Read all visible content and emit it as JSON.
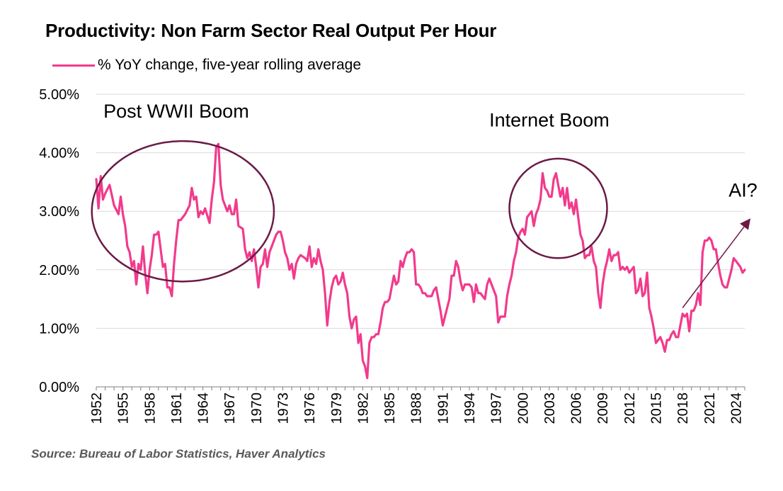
{
  "chart_data": {
    "type": "line",
    "title": "Productivity: Non Farm Sector Real Output Per Hour",
    "source": "Source: Bureau of Labor Statistics, Haver Analytics",
    "series": [
      {
        "name": "% YoY change, five-year rolling average",
        "color": "#F23A8C",
        "points": [
          [
            1952.0,
            3.55
          ],
          [
            1952.25,
            3.05
          ],
          [
            1952.5,
            3.6
          ],
          [
            1952.75,
            3.2
          ],
          [
            1953.0,
            3.3
          ],
          [
            1953.5,
            3.45
          ],
          [
            1954.0,
            3.1
          ],
          [
            1954.5,
            2.95
          ],
          [
            1954.75,
            3.25
          ],
          [
            1955.0,
            2.95
          ],
          [
            1955.25,
            2.75
          ],
          [
            1955.5,
            2.4
          ],
          [
            1955.75,
            2.3
          ],
          [
            1956.0,
            2.05
          ],
          [
            1956.25,
            2.15
          ],
          [
            1956.5,
            1.75
          ],
          [
            1956.75,
            2.1
          ],
          [
            1957.0,
            2.0
          ],
          [
            1957.25,
            2.4
          ],
          [
            1957.5,
            1.95
          ],
          [
            1957.75,
            1.6
          ],
          [
            1958.0,
            2.0
          ],
          [
            1958.25,
            2.25
          ],
          [
            1958.5,
            2.6
          ],
          [
            1958.75,
            2.6
          ],
          [
            1959.0,
            2.65
          ],
          [
            1959.5,
            2.05
          ],
          [
            1959.75,
            2.1
          ],
          [
            1960.0,
            1.7
          ],
          [
            1960.25,
            1.7
          ],
          [
            1960.5,
            1.55
          ],
          [
            1960.75,
            2.1
          ],
          [
            1961.0,
            2.5
          ],
          [
            1961.25,
            2.85
          ],
          [
            1961.5,
            2.85
          ],
          [
            1961.75,
            2.9
          ],
          [
            1962.0,
            2.95
          ],
          [
            1962.5,
            3.1
          ],
          [
            1962.75,
            3.4
          ],
          [
            1963.0,
            3.2
          ],
          [
            1963.25,
            3.25
          ],
          [
            1963.5,
            2.9
          ],
          [
            1963.75,
            3.0
          ],
          [
            1964.0,
            2.95
          ],
          [
            1964.25,
            3.05
          ],
          [
            1964.75,
            2.8
          ],
          [
            1965.0,
            3.2
          ],
          [
            1965.25,
            3.5
          ],
          [
            1965.5,
            4.1
          ],
          [
            1965.75,
            4.15
          ],
          [
            1966.0,
            3.45
          ],
          [
            1966.25,
            3.2
          ],
          [
            1966.5,
            3.1
          ],
          [
            1966.75,
            3.0
          ],
          [
            1967.0,
            3.1
          ],
          [
            1967.25,
            2.95
          ],
          [
            1967.5,
            2.95
          ],
          [
            1967.75,
            3.2
          ],
          [
            1968.0,
            2.75
          ],
          [
            1968.5,
            2.7
          ],
          [
            1968.75,
            2.35
          ],
          [
            1969.0,
            2.2
          ],
          [
            1969.25,
            2.3
          ],
          [
            1969.5,
            2.15
          ],
          [
            1969.75,
            2.35
          ],
          [
            1970.0,
            2.05
          ],
          [
            1970.25,
            1.7
          ],
          [
            1970.5,
            2.05
          ],
          [
            1970.75,
            2.1
          ],
          [
            1971.0,
            2.35
          ],
          [
            1971.25,
            2.05
          ],
          [
            1971.5,
            2.3
          ],
          [
            1972.0,
            2.5
          ],
          [
            1972.25,
            2.6
          ],
          [
            1972.5,
            2.65
          ],
          [
            1972.75,
            2.65
          ],
          [
            1973.0,
            2.5
          ],
          [
            1973.25,
            2.3
          ],
          [
            1973.5,
            2.2
          ],
          [
            1973.75,
            2.0
          ],
          [
            1974.0,
            2.1
          ],
          [
            1974.25,
            1.85
          ],
          [
            1974.5,
            2.1
          ],
          [
            1974.75,
            2.2
          ],
          [
            1975.0,
            2.25
          ],
          [
            1975.5,
            2.2
          ],
          [
            1975.75,
            2.15
          ],
          [
            1976.0,
            2.4
          ],
          [
            1976.25,
            2.05
          ],
          [
            1976.5,
            2.2
          ],
          [
            1976.75,
            2.1
          ],
          [
            1977.0,
            2.35
          ],
          [
            1977.25,
            2.15
          ],
          [
            1977.5,
            2.0
          ],
          [
            1977.75,
            1.6
          ],
          [
            1978.0,
            1.05
          ],
          [
            1978.25,
            1.45
          ],
          [
            1978.5,
            1.7
          ],
          [
            1978.75,
            1.85
          ],
          [
            1979.0,
            1.9
          ],
          [
            1979.25,
            1.75
          ],
          [
            1979.5,
            1.8
          ],
          [
            1979.75,
            1.95
          ],
          [
            1980.0,
            1.75
          ],
          [
            1980.25,
            1.6
          ],
          [
            1980.5,
            1.2
          ],
          [
            1980.75,
            1.0
          ],
          [
            1981.0,
            1.15
          ],
          [
            1981.25,
            1.2
          ],
          [
            1981.5,
            0.75
          ],
          [
            1981.75,
            0.9
          ],
          [
            1982.0,
            0.45
          ],
          [
            1982.25,
            0.35
          ],
          [
            1982.5,
            0.15
          ],
          [
            1982.75,
            0.75
          ],
          [
            1983.0,
            0.85
          ],
          [
            1983.25,
            0.85
          ],
          [
            1983.5,
            0.9
          ],
          [
            1983.75,
            0.9
          ],
          [
            1984.0,
            1.1
          ],
          [
            1984.25,
            1.35
          ],
          [
            1984.5,
            1.45
          ],
          [
            1984.75,
            1.45
          ],
          [
            1985.0,
            1.5
          ],
          [
            1985.25,
            1.7
          ],
          [
            1985.5,
            1.9
          ],
          [
            1985.75,
            1.75
          ],
          [
            1986.0,
            1.8
          ],
          [
            1986.25,
            2.15
          ],
          [
            1986.5,
            2.05
          ],
          [
            1986.75,
            2.2
          ],
          [
            1987.0,
            2.3
          ],
          [
            1987.25,
            2.3
          ],
          [
            1987.5,
            2.35
          ],
          [
            1987.75,
            2.3
          ],
          [
            1988.0,
            1.75
          ],
          [
            1988.25,
            1.75
          ],
          [
            1988.5,
            1.7
          ],
          [
            1988.75,
            1.6
          ],
          [
            1989.0,
            1.6
          ],
          [
            1989.25,
            1.55
          ],
          [
            1989.5,
            1.55
          ],
          [
            1989.75,
            1.55
          ],
          [
            1990.0,
            1.65
          ],
          [
            1990.25,
            1.7
          ],
          [
            1990.5,
            1.5
          ],
          [
            1990.75,
            1.3
          ],
          [
            1991.0,
            1.05
          ],
          [
            1991.25,
            1.2
          ],
          [
            1991.5,
            1.35
          ],
          [
            1991.75,
            1.5
          ],
          [
            1992.0,
            1.9
          ],
          [
            1992.25,
            1.9
          ],
          [
            1992.5,
            2.15
          ],
          [
            1992.75,
            2.05
          ],
          [
            1993.0,
            1.8
          ],
          [
            1993.25,
            1.65
          ],
          [
            1993.5,
            1.75
          ],
          [
            1993.75,
            1.75
          ],
          [
            1994.0,
            1.75
          ],
          [
            1994.25,
            1.7
          ],
          [
            1994.5,
            1.45
          ],
          [
            1994.75,
            1.75
          ],
          [
            1995.0,
            1.6
          ],
          [
            1995.25,
            1.6
          ],
          [
            1995.5,
            1.55
          ],
          [
            1995.75,
            1.5
          ],
          [
            1996.0,
            1.75
          ],
          [
            1996.25,
            1.85
          ],
          [
            1996.5,
            1.75
          ],
          [
            1996.75,
            1.65
          ],
          [
            1997.0,
            1.55
          ],
          [
            1997.25,
            1.1
          ],
          [
            1997.5,
            1.2
          ],
          [
            1997.75,
            1.2
          ],
          [
            1998.0,
            1.2
          ],
          [
            1998.25,
            1.55
          ],
          [
            1998.5,
            1.75
          ],
          [
            1998.75,
            1.9
          ],
          [
            1999.0,
            2.15
          ],
          [
            1999.25,
            2.3
          ],
          [
            1999.5,
            2.55
          ],
          [
            1999.75,
            2.65
          ],
          [
            2000.0,
            2.7
          ],
          [
            2000.25,
            2.6
          ],
          [
            2000.5,
            2.9
          ],
          [
            2000.75,
            2.95
          ],
          [
            2001.0,
            3.0
          ],
          [
            2001.25,
            2.75
          ],
          [
            2001.5,
            2.95
          ],
          [
            2001.75,
            3.05
          ],
          [
            2002.0,
            3.2
          ],
          [
            2002.25,
            3.65
          ],
          [
            2002.5,
            3.4
          ],
          [
            2002.75,
            3.35
          ],
          [
            2003.0,
            3.25
          ],
          [
            2003.25,
            3.25
          ],
          [
            2003.5,
            3.55
          ],
          [
            2003.75,
            3.65
          ],
          [
            2004.0,
            3.45
          ],
          [
            2004.25,
            3.25
          ],
          [
            2004.5,
            3.4
          ],
          [
            2004.75,
            3.1
          ],
          [
            2005.0,
            3.4
          ],
          [
            2005.25,
            3.05
          ],
          [
            2005.5,
            3.15
          ],
          [
            2005.75,
            2.95
          ],
          [
            2006.0,
            3.2
          ],
          [
            2006.25,
            2.9
          ],
          [
            2006.5,
            2.6
          ],
          [
            2006.75,
            2.5
          ],
          [
            2007.0,
            2.2
          ],
          [
            2007.25,
            2.25
          ],
          [
            2007.5,
            2.25
          ],
          [
            2007.75,
            2.4
          ],
          [
            2008.0,
            2.15
          ],
          [
            2008.25,
            2.05
          ],
          [
            2008.5,
            1.6
          ],
          [
            2008.75,
            1.35
          ],
          [
            2009.0,
            1.75
          ],
          [
            2009.25,
            2.0
          ],
          [
            2009.5,
            2.15
          ],
          [
            2009.75,
            2.35
          ],
          [
            2010.0,
            2.15
          ],
          [
            2010.25,
            2.25
          ],
          [
            2010.5,
            2.25
          ],
          [
            2010.75,
            2.3
          ],
          [
            2011.0,
            2.0
          ],
          [
            2011.25,
            2.05
          ],
          [
            2011.5,
            2.0
          ],
          [
            2011.75,
            2.05
          ],
          [
            2012.0,
            1.95
          ],
          [
            2012.25,
            2.0
          ],
          [
            2012.5,
            2.05
          ],
          [
            2012.75,
            1.6
          ],
          [
            2013.0,
            1.65
          ],
          [
            2013.25,
            1.85
          ],
          [
            2013.5,
            1.55
          ],
          [
            2013.75,
            1.6
          ],
          [
            2014.0,
            1.95
          ],
          [
            2014.25,
            1.35
          ],
          [
            2014.5,
            1.2
          ],
          [
            2014.75,
            1.0
          ],
          [
            2015.0,
            0.75
          ],
          [
            2015.25,
            0.8
          ],
          [
            2015.5,
            0.85
          ],
          [
            2015.75,
            0.75
          ],
          [
            2016.0,
            0.6
          ],
          [
            2016.25,
            0.8
          ],
          [
            2016.5,
            0.8
          ],
          [
            2016.75,
            0.9
          ],
          [
            2017.0,
            0.95
          ],
          [
            2017.25,
            0.85
          ],
          [
            2017.5,
            0.85
          ],
          [
            2017.75,
            1.05
          ],
          [
            2018.0,
            1.25
          ],
          [
            2018.25,
            1.2
          ],
          [
            2018.5,
            1.25
          ],
          [
            2018.75,
            0.95
          ],
          [
            2019.0,
            1.3
          ],
          [
            2019.25,
            1.3
          ],
          [
            2019.5,
            1.4
          ],
          [
            2019.75,
            1.6
          ],
          [
            2020.0,
            1.4
          ],
          [
            2020.25,
            2.3
          ],
          [
            2020.5,
            2.5
          ],
          [
            2020.75,
            2.5
          ],
          [
            2021.0,
            2.55
          ],
          [
            2021.25,
            2.5
          ],
          [
            2021.5,
            2.35
          ],
          [
            2021.75,
            2.35
          ],
          [
            2022.0,
            2.1
          ],
          [
            2022.25,
            1.9
          ],
          [
            2022.5,
            1.75
          ],
          [
            2022.75,
            1.7
          ],
          [
            2023.0,
            1.7
          ],
          [
            2023.25,
            1.85
          ],
          [
            2023.5,
            2.0
          ],
          [
            2023.75,
            2.2
          ],
          [
            2024.0,
            2.15
          ],
          [
            2024.25,
            2.1
          ],
          [
            2024.5,
            2.05
          ],
          [
            2024.75,
            1.95
          ],
          [
            2025.0,
            2.0
          ]
        ]
      }
    ],
    "x_ticks": [
      "1952",
      "1955",
      "1958",
      "1961",
      "1964",
      "1967",
      "1970",
      "1973",
      "1976",
      "1979",
      "1982",
      "1985",
      "1988",
      "1991",
      "1994",
      "1997",
      "2000",
      "2003",
      "2006",
      "2009",
      "2012",
      "2015",
      "2018",
      "2021",
      "2024"
    ],
    "y_ticks": [
      "0.00%",
      "1.00%",
      "2.00%",
      "3.00%",
      "4.00%",
      "5.00%"
    ],
    "xlim": [
      1952,
      2025
    ],
    "ylim": [
      0,
      5
    ],
    "grid": "horizontal",
    "legend": "top-left",
    "annotations": [
      {
        "text": "Post WWII Boom",
        "shape": "ellipse",
        "x_range": [
          1951.5,
          1972.0
        ],
        "y_range": [
          1.8,
          4.2
        ],
        "label_at": [
          1961,
          4.6
        ]
      },
      {
        "text": "Internet Boom",
        "shape": "ellipse",
        "x_range": [
          1998.5,
          2009.5
        ],
        "y_range": [
          2.2,
          3.9
        ],
        "label_at": [
          2003,
          4.45
        ]
      },
      {
        "text": "AI?",
        "shape": "arrow",
        "from": [
          2018.0,
          1.35
        ],
        "to": [
          2025.5,
          2.85
        ],
        "label_at": [
          2024.8,
          3.25
        ]
      }
    ],
    "colors": {
      "line": "#F23A8C",
      "annotation": "#6B1A45",
      "grid": "#D9D9D9",
      "axis": "#7F7F7F"
    }
  }
}
